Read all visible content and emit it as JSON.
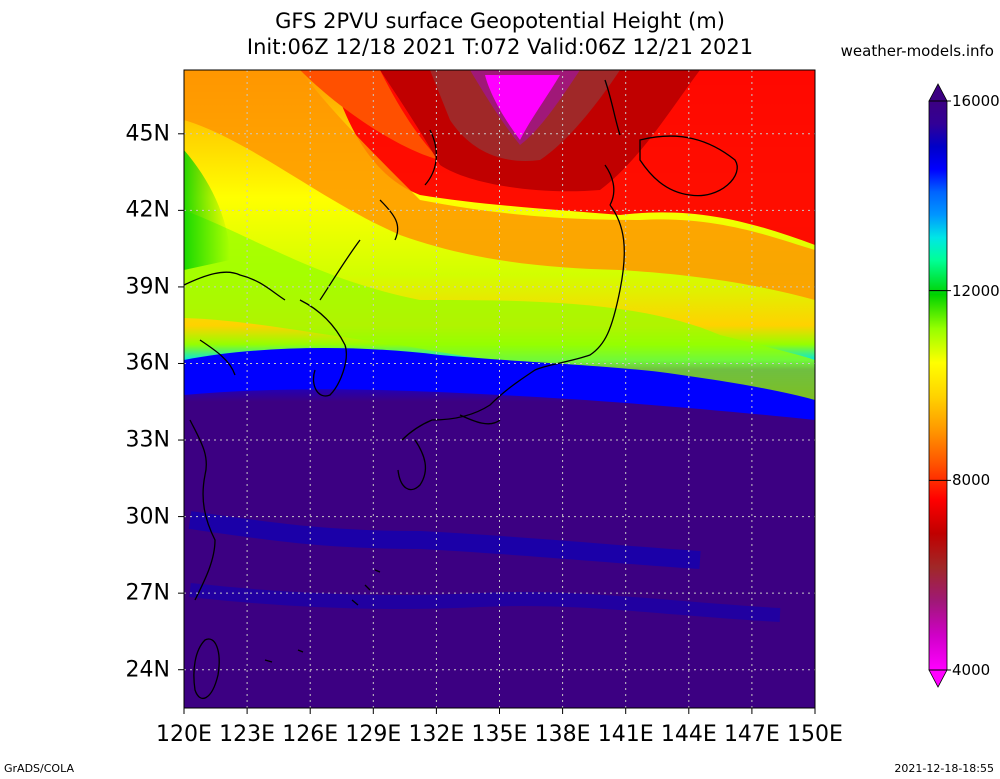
{
  "title": {
    "line1": "GFS 2PVU surface Geopotential Height (m)",
    "line2": "Init:06Z 12/18 2021 T:072 Valid:06Z 12/21 2021"
  },
  "site": "weather-models.info",
  "footer": {
    "left": "GrADS/COLA",
    "right": "2021-12-18-18:55"
  },
  "map": {
    "lon_range": [
      120,
      150
    ],
    "lat_range": [
      22.5,
      47.5
    ],
    "lat_labels": [
      "45N",
      "42N",
      "39N",
      "36N",
      "33N",
      "30N",
      "27N",
      "24N"
    ],
    "lon_labels": [
      "120E",
      "123E",
      "126E",
      "129E",
      "132E",
      "135E",
      "138E",
      "141E",
      "144E",
      "147E",
      "150E"
    ],
    "grid": true
  },
  "colorbar": {
    "range": [
      4000,
      16000
    ],
    "labels": [
      "16000",
      "12000",
      "8000",
      "4000"
    ],
    "colors": [
      "#ff00ff",
      "#d000c8",
      "#a01878",
      "#a02828",
      "#c00000",
      "#ff0000",
      "#ff5000",
      "#ff9600",
      "#ffd200",
      "#ffff00",
      "#d2ff00",
      "#96ff00",
      "#00d200",
      "#00ff96",
      "#00e6e6",
      "#0096ff",
      "#0064ff",
      "#0000ff",
      "#0000c8",
      "#320096",
      "#3c0082"
    ]
  }
}
